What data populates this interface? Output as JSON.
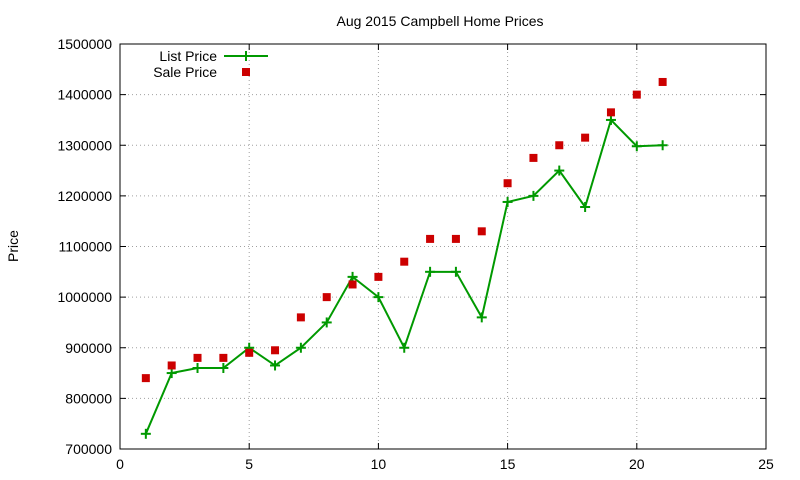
{
  "chart_data": {
    "type": "line",
    "title": "Aug 2015 Campbell Home Prices",
    "xlabel": "",
    "ylabel": "Price",
    "xlim": [
      0,
      25
    ],
    "ylim": [
      700000,
      1500000
    ],
    "x_ticks": [
      0,
      5,
      10,
      15,
      20,
      25
    ],
    "y_ticks": [
      700000,
      800000,
      900000,
      1000000,
      1100000,
      1200000,
      1300000,
      1400000,
      1500000
    ],
    "grid": true,
    "legend_position": "top-left",
    "series": [
      {
        "name": "List Price",
        "style": "line-with-plus-markers",
        "color": "#009900",
        "points": [
          [
            1,
            730000
          ],
          [
            2,
            850000
          ],
          [
            3,
            860000
          ],
          [
            4,
            860000
          ],
          [
            5,
            900000
          ],
          [
            6,
            865000
          ],
          [
            7,
            900000
          ],
          [
            8,
            950000
          ],
          [
            9,
            1040000
          ],
          [
            10,
            1000000
          ],
          [
            11,
            900000
          ],
          [
            12,
            1050000
          ],
          [
            13,
            1050000
          ],
          [
            14,
            960000
          ],
          [
            15,
            1188000
          ],
          [
            16,
            1200000
          ],
          [
            17,
            1250000
          ],
          [
            18,
            1178000
          ],
          [
            19,
            1350000
          ],
          [
            20,
            1298000
          ],
          [
            21,
            1300000
          ]
        ]
      },
      {
        "name": "Sale Price",
        "style": "square-markers",
        "color": "#cc0000",
        "points": [
          [
            1,
            840000
          ],
          [
            2,
            865000
          ],
          [
            3,
            880000
          ],
          [
            4,
            880000
          ],
          [
            5,
            890000
          ],
          [
            6,
            895000
          ],
          [
            7,
            960000
          ],
          [
            8,
            1000000
          ],
          [
            9,
            1025000
          ],
          [
            10,
            1040000
          ],
          [
            11,
            1070000
          ],
          [
            12,
            1115000
          ],
          [
            13,
            1115000
          ],
          [
            14,
            1130000
          ],
          [
            15,
            1225000
          ],
          [
            16,
            1275000
          ],
          [
            17,
            1300000
          ],
          [
            18,
            1315000
          ],
          [
            19,
            1365000
          ],
          [
            20,
            1400000
          ],
          [
            21,
            1425000
          ]
        ]
      }
    ]
  }
}
